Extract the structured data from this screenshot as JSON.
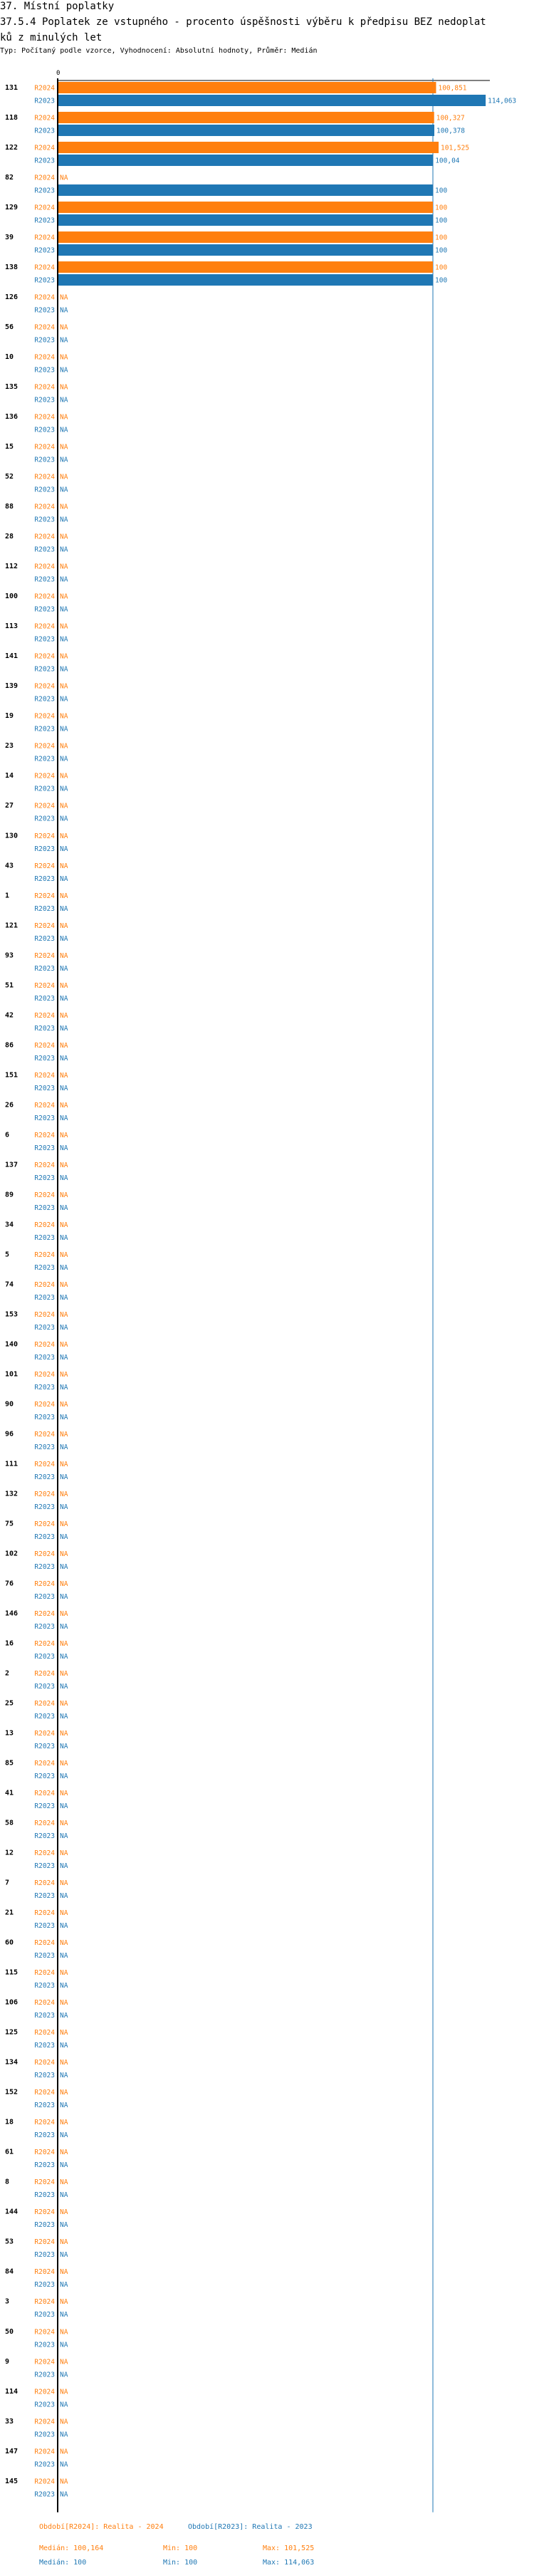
{
  "header": {
    "title": "37. Místní poplatky",
    "subtitle_line1": "37.5.4 Poplatek ze vstupného - procento úspěšnosti výběru k předpisu BEZ nedoplat",
    "subtitle_line2": "ků z minulých let",
    "info": "Typ: Počítaný podle vzorce, Vyhodnocení: Absolutní hodnoty, Průměr: Medián"
  },
  "chart_data": {
    "type": "bar",
    "orientation": "horizontal",
    "x_tick_labels": [
      "0"
    ],
    "xlim": [
      0,
      115
    ],
    "reference_line": {
      "label": "Medián",
      "value": 100
    },
    "na_label": "NA",
    "categories": [
      "131",
      "118",
      "122",
      "82",
      "129",
      "39",
      "138",
      "126",
      "56",
      "10",
      "135",
      "136",
      "15",
      "52",
      "88",
      "28",
      "112",
      "100",
      "113",
      "141",
      "139",
      "19",
      "23",
      "14",
      "27",
      "130",
      "43",
      "1",
      "121",
      "93",
      "51",
      "42",
      "86",
      "151",
      "26",
      "6",
      "137",
      "89",
      "34",
      "5",
      "74",
      "153",
      "140",
      "101",
      "90",
      "96",
      "111",
      "132",
      "75",
      "102",
      "76",
      "146",
      "16",
      "2",
      "25",
      "13",
      "85",
      "41",
      "58",
      "12",
      "7",
      "21",
      "60",
      "115",
      "106",
      "125",
      "134",
      "152",
      "18",
      "61",
      "8",
      "144",
      "53",
      "84",
      "3",
      "50",
      "9",
      "114",
      "33",
      "147",
      "145"
    ],
    "series": [
      {
        "name": "R2024",
        "color": "#ff7f0e",
        "values": [
          100.851,
          100.327,
          101.525,
          null,
          100,
          100,
          100,
          null,
          null,
          null,
          null,
          null,
          null,
          null,
          null,
          null,
          null,
          null,
          null,
          null,
          null,
          null,
          null,
          null,
          null,
          null,
          null,
          null,
          null,
          null,
          null,
          null,
          null,
          null,
          null,
          null,
          null,
          null,
          null,
          null,
          null,
          null,
          null,
          null,
          null,
          null,
          null,
          null,
          null,
          null,
          null,
          null,
          null,
          null,
          null,
          null,
          null,
          null,
          null,
          null,
          null,
          null,
          null,
          null,
          null,
          null,
          null,
          null,
          null,
          null,
          null,
          null,
          null,
          null,
          null,
          null,
          null,
          null,
          null,
          null,
          null
        ]
      },
      {
        "name": "R2023",
        "color": "#1f77b4",
        "values": [
          114.063,
          100.378,
          100.04,
          100,
          100,
          100,
          100,
          null,
          null,
          null,
          null,
          null,
          null,
          null,
          null,
          null,
          null,
          null,
          null,
          null,
          null,
          null,
          null,
          null,
          null,
          null,
          null,
          null,
          null,
          null,
          null,
          null,
          null,
          null,
          null,
          null,
          null,
          null,
          null,
          null,
          null,
          null,
          null,
          null,
          null,
          null,
          null,
          null,
          null,
          null,
          null,
          null,
          null,
          null,
          null,
          null,
          null,
          null,
          null,
          null,
          null,
          null,
          null,
          null,
          null,
          null,
          null,
          null,
          null,
          null,
          null,
          null,
          null,
          null,
          null,
          null,
          null,
          null,
          null,
          null,
          null
        ]
      }
    ],
    "legend": [
      {
        "label": "Období[R2024]: Realita - 2024",
        "color": "#ff7f0e",
        "median": "Medián: 100,164",
        "min": "Min: 100",
        "max": "Max: 101,525"
      },
      {
        "label": "Období[R2023]: Realita - 2023",
        "color": "#1f77b4",
        "median": "Medián: 100",
        "min": "Min: 100",
        "max": "Max: 114,063"
      }
    ]
  }
}
